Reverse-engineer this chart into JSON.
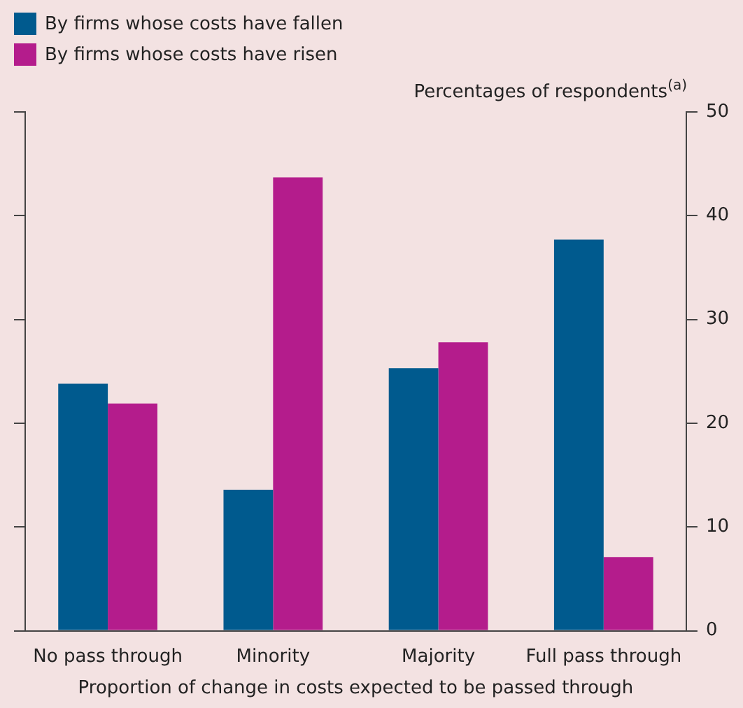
{
  "chart_data": {
    "type": "bar",
    "xlabel": "Proportion of change in costs expected to be passed through",
    "ylabel": "Percentages of respondents$^{(a)}$",
    "categories": [
      "No pass through",
      "Minority",
      "Majority",
      "Full pass through"
    ],
    "series": [
      {
        "name": "By firms whose costs have fallen",
        "color": "#005a8e",
        "values": [
          23.8,
          13.6,
          25.3,
          37.7
        ]
      },
      {
        "name": "By firms whose costs have risen",
        "color": "#b41c8c",
        "values": [
          21.9,
          43.7,
          27.8,
          7.1
        ]
      }
    ],
    "ylim": [
      0,
      50
    ],
    "yticks": [
      0,
      10,
      20,
      30,
      40,
      50
    ],
    "grid": false,
    "legend": "top left"
  }
}
